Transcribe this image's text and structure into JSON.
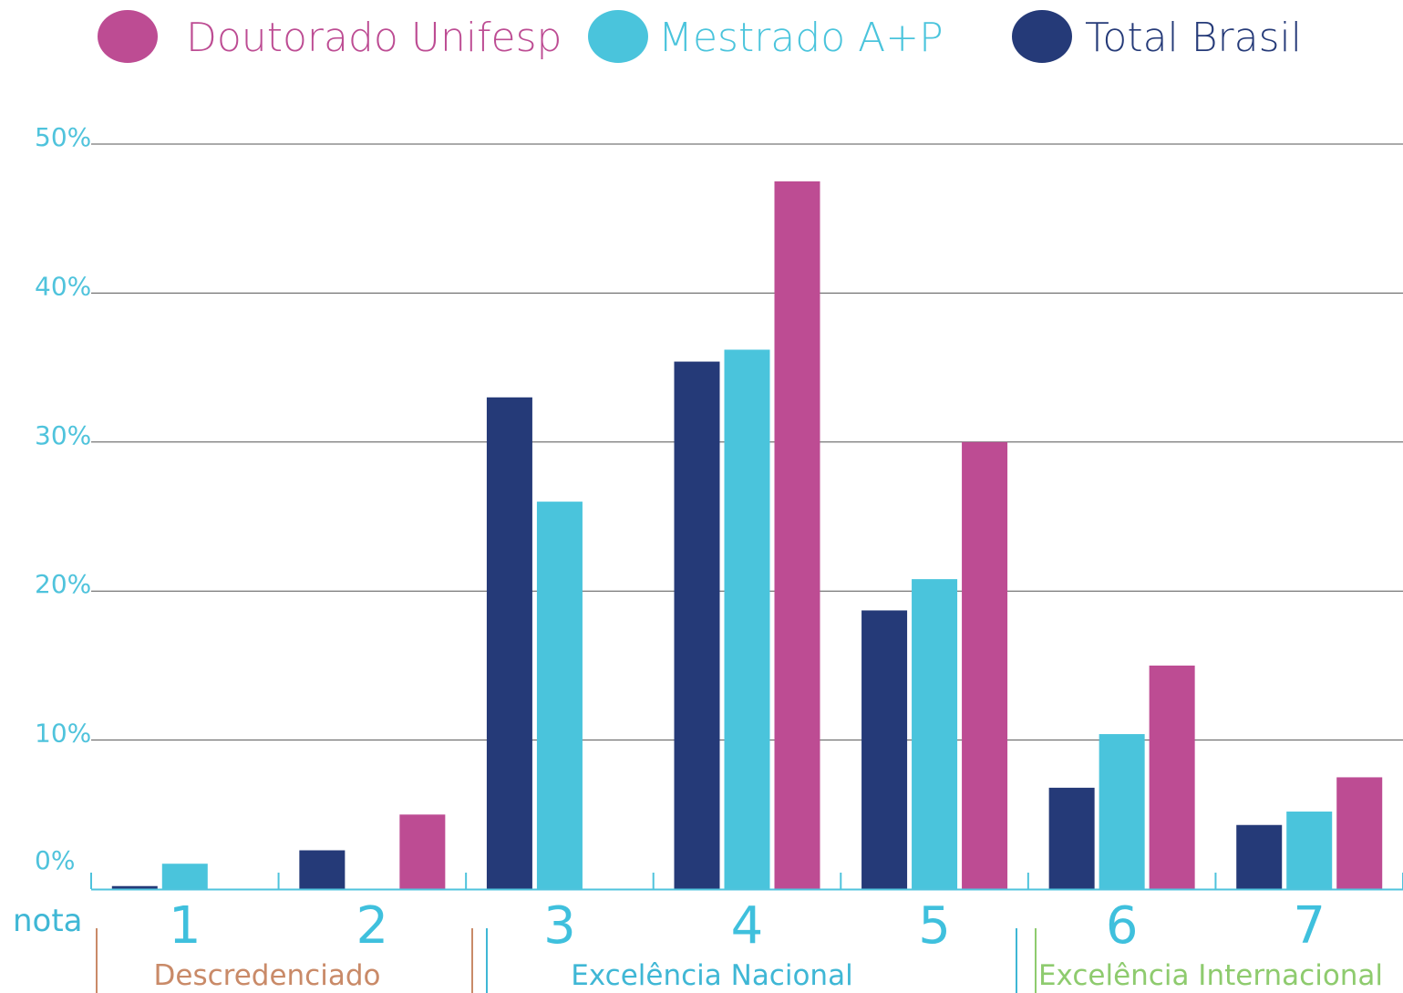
{
  "legend": [
    {
      "label": "Doutorado Unifesp",
      "color": "#bd4c93"
    },
    {
      "label": "Mestrado A+P",
      "color": "#4ac4dc"
    },
    {
      "label": "Total Brasil",
      "color": "#253a78"
    }
  ],
  "axis": {
    "x_title": "nota",
    "y_ticks": [
      "0%",
      "10%",
      "20%",
      "30%",
      "40%",
      "50%"
    ]
  },
  "groups": [
    {
      "label": "Descredenciado",
      "color": "#c98a68"
    },
    {
      "label": "Excelência Nacional",
      "color": "#3fb7d5"
    },
    {
      "label": "Excelência Internacional",
      "color": "#8ecb6e"
    }
  ],
  "colors": {
    "grid": "#555555",
    "axis": "#4fc3dc"
  },
  "chart_data": {
    "type": "bar",
    "categories": [
      "1",
      "2",
      "3",
      "4",
      "5",
      "6",
      "7"
    ],
    "ylim": [
      0,
      50
    ],
    "series": [
      {
        "name": "Total Brasil",
        "color": "#253a78",
        "values": [
          0.2,
          2.6,
          33,
          35.4,
          18.7,
          6.8,
          4.3
        ]
      },
      {
        "name": "Mestrado A+P",
        "color": "#4ac4dc",
        "values": [
          1.7,
          0,
          26,
          36.2,
          20.8,
          10.4,
          5.2
        ]
      },
      {
        "name": "Doutorado Unifesp",
        "color": "#bd4c93",
        "values": [
          0,
          5,
          0,
          47.5,
          30,
          15,
          7.5
        ]
      }
    ]
  }
}
